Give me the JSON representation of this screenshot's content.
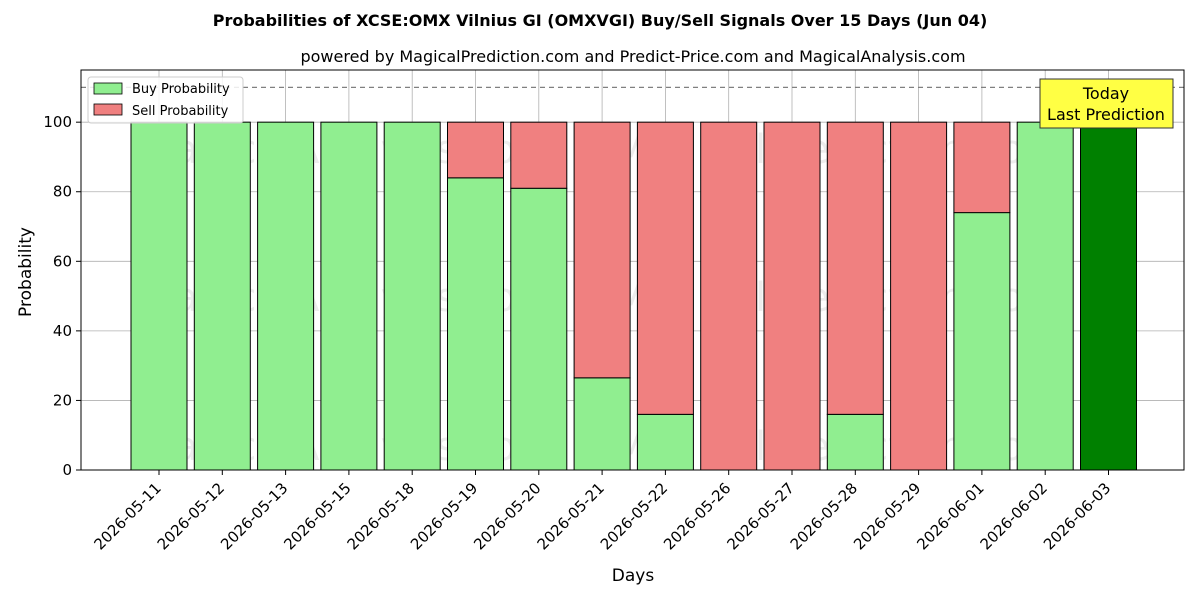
{
  "chart_data": {
    "type": "bar",
    "title": "Probabilities of XCSE:OMX Vilnius GI (OMXVGI) Buy/Sell Signals Over 15 Days (Jun 04)",
    "subtitle": "powered by MagicalPrediction.com and Predict-Price.com and MagicalAnalysis.com",
    "xlabel": "Days",
    "ylabel": "Probability",
    "ylim": [
      0,
      115
    ],
    "yticks": [
      0,
      20,
      40,
      60,
      80,
      100
    ],
    "grid": true,
    "legend_placement": "top-left",
    "reference_line": 110,
    "categories": [
      "2026-05-11",
      "2026-05-12",
      "2026-05-13",
      "2026-05-15",
      "2026-05-18",
      "2026-05-19",
      "2026-05-20",
      "2026-05-21",
      "2026-05-22",
      "2026-05-26",
      "2026-05-27",
      "2026-05-28",
      "2026-05-29",
      "2026-06-01",
      "2026-06-02",
      "2026-06-03"
    ],
    "series": [
      {
        "name": "Buy Probability",
        "color": "#90ee90",
        "values": [
          100,
          100,
          100,
          100,
          100,
          84,
          81,
          26.5,
          16,
          0,
          0,
          16,
          0,
          74,
          100,
          100
        ]
      },
      {
        "name": "Sell Probability",
        "color": "#f08080",
        "values": [
          0,
          0,
          0,
          0,
          0,
          16,
          19,
          73.5,
          84,
          100,
          100,
          84,
          100,
          26,
          0,
          0
        ]
      }
    ],
    "highlight": {
      "index": 15,
      "color": "#008000"
    },
    "annotation": {
      "line1": "Today",
      "line2": "Last Prediction",
      "color": "#ffff44"
    },
    "watermark": [
      "MagicalAnalysis.com",
      "MagicalPrediction.com"
    ]
  }
}
